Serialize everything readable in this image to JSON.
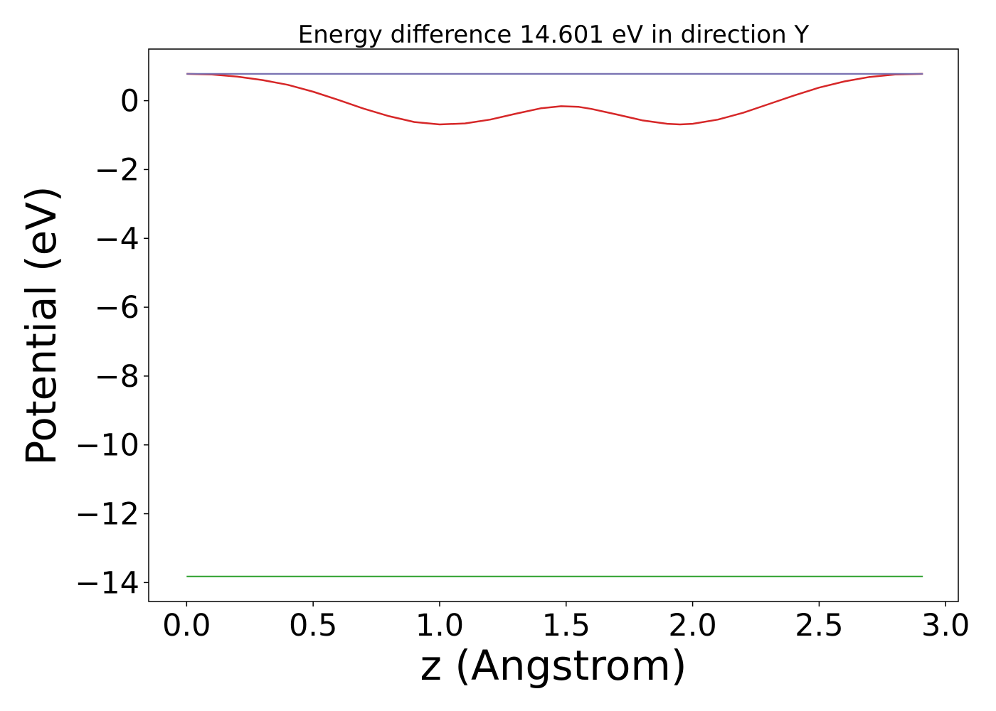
{
  "chart_data": {
    "type": "line",
    "title": "Energy difference 14.601 eV in direction Y",
    "xlabel": "z (Angstrom)",
    "ylabel": "Potential (eV)",
    "xlim": [
      -0.15,
      3.05
    ],
    "ylim": [
      -14.55,
      1.5
    ],
    "xticks": [
      0.0,
      0.5,
      1.0,
      1.5,
      2.0,
      2.5,
      3.0
    ],
    "xtick_labels": [
      "0.0",
      "0.5",
      "1.0",
      "1.5",
      "2.0",
      "2.5",
      "3.0"
    ],
    "yticks": [
      0,
      -2,
      -4,
      -6,
      -8,
      -10,
      -12,
      -14
    ],
    "ytick_labels": [
      "0",
      "−2",
      "−4",
      "−6",
      "−8",
      "−10",
      "−12",
      "−14"
    ],
    "grid": false,
    "legend": "none",
    "series": [
      {
        "color": "#1f77b4",
        "x": [
          0.0,
          2.91
        ],
        "y": [
          0.78,
          0.78
        ]
      },
      {
        "color": "#2ca02c",
        "x": [
          0.0,
          2.91
        ],
        "y": [
          -13.82,
          -13.82
        ]
      },
      {
        "color": "#d62728",
        "x": [
          0.0,
          0.1,
          0.2,
          0.3,
          0.4,
          0.5,
          0.6,
          0.7,
          0.8,
          0.9,
          1.0,
          1.1,
          1.2,
          1.3,
          1.4,
          1.48,
          1.55,
          1.6,
          1.7,
          1.8,
          1.9,
          1.95,
          2.0,
          2.1,
          2.2,
          2.3,
          2.4,
          2.5,
          2.6,
          2.7,
          2.8,
          2.91
        ],
        "y": [
          0.78,
          0.76,
          0.7,
          0.6,
          0.46,
          0.26,
          0.02,
          -0.23,
          -0.45,
          -0.62,
          -0.69,
          -0.66,
          -0.55,
          -0.38,
          -0.22,
          -0.16,
          -0.18,
          -0.24,
          -0.4,
          -0.57,
          -0.67,
          -0.69,
          -0.67,
          -0.55,
          -0.35,
          -0.1,
          0.15,
          0.38,
          0.56,
          0.69,
          0.76,
          0.78
        ]
      },
      {
        "color": "#7b6fb0",
        "x": [
          0.0,
          2.91
        ],
        "y": [
          0.78,
          0.78
        ]
      }
    ]
  }
}
